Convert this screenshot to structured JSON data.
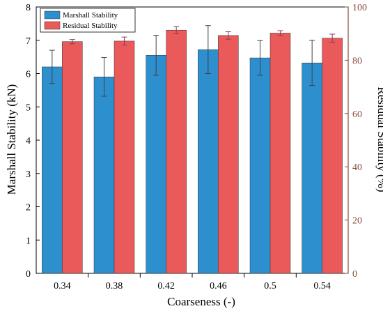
{
  "chart_data": {
    "type": "bar",
    "categories": [
      "0.34",
      "0.38",
      "0.42",
      "0.46",
      "0.5",
      "0.54"
    ],
    "series": [
      {
        "name": "Marshall Stability",
        "axis": "left",
        "color": "#2e8fcf",
        "values": [
          6.2,
          5.9,
          6.55,
          6.72,
          6.47,
          6.32
        ],
        "error": [
          0.5,
          0.58,
          0.6,
          0.72,
          0.52,
          0.68
        ]
      },
      {
        "name": "Residual Stability",
        "axis": "right",
        "color": "#eb5a5a",
        "values": [
          87.0,
          87.2,
          91.3,
          89.3,
          90.2,
          88.3
        ],
        "error": [
          0.8,
          1.5,
          1.3,
          1.4,
          0.9,
          1.5
        ]
      }
    ],
    "xlabel": "Coarseness (-)",
    "ylabel_left": "Marshall Stability (kN)",
    "ylabel_right": "Residual Stability (%)",
    "ylim_left": [
      0,
      8
    ],
    "ylim_right": [
      0,
      100
    ],
    "yticks_left": [
      "0",
      "1",
      "2",
      "3",
      "4",
      "5",
      "6",
      "7",
      "8"
    ],
    "yticks_right": [
      "0",
      "20",
      "40",
      "60",
      "80",
      "100"
    ],
    "legend_position": "top-left",
    "grid": false,
    "right_axis_color": "#8b4a3c",
    "error_bar_color_left": "#404040",
    "error_bar_color_right": "#8b3a5a"
  }
}
